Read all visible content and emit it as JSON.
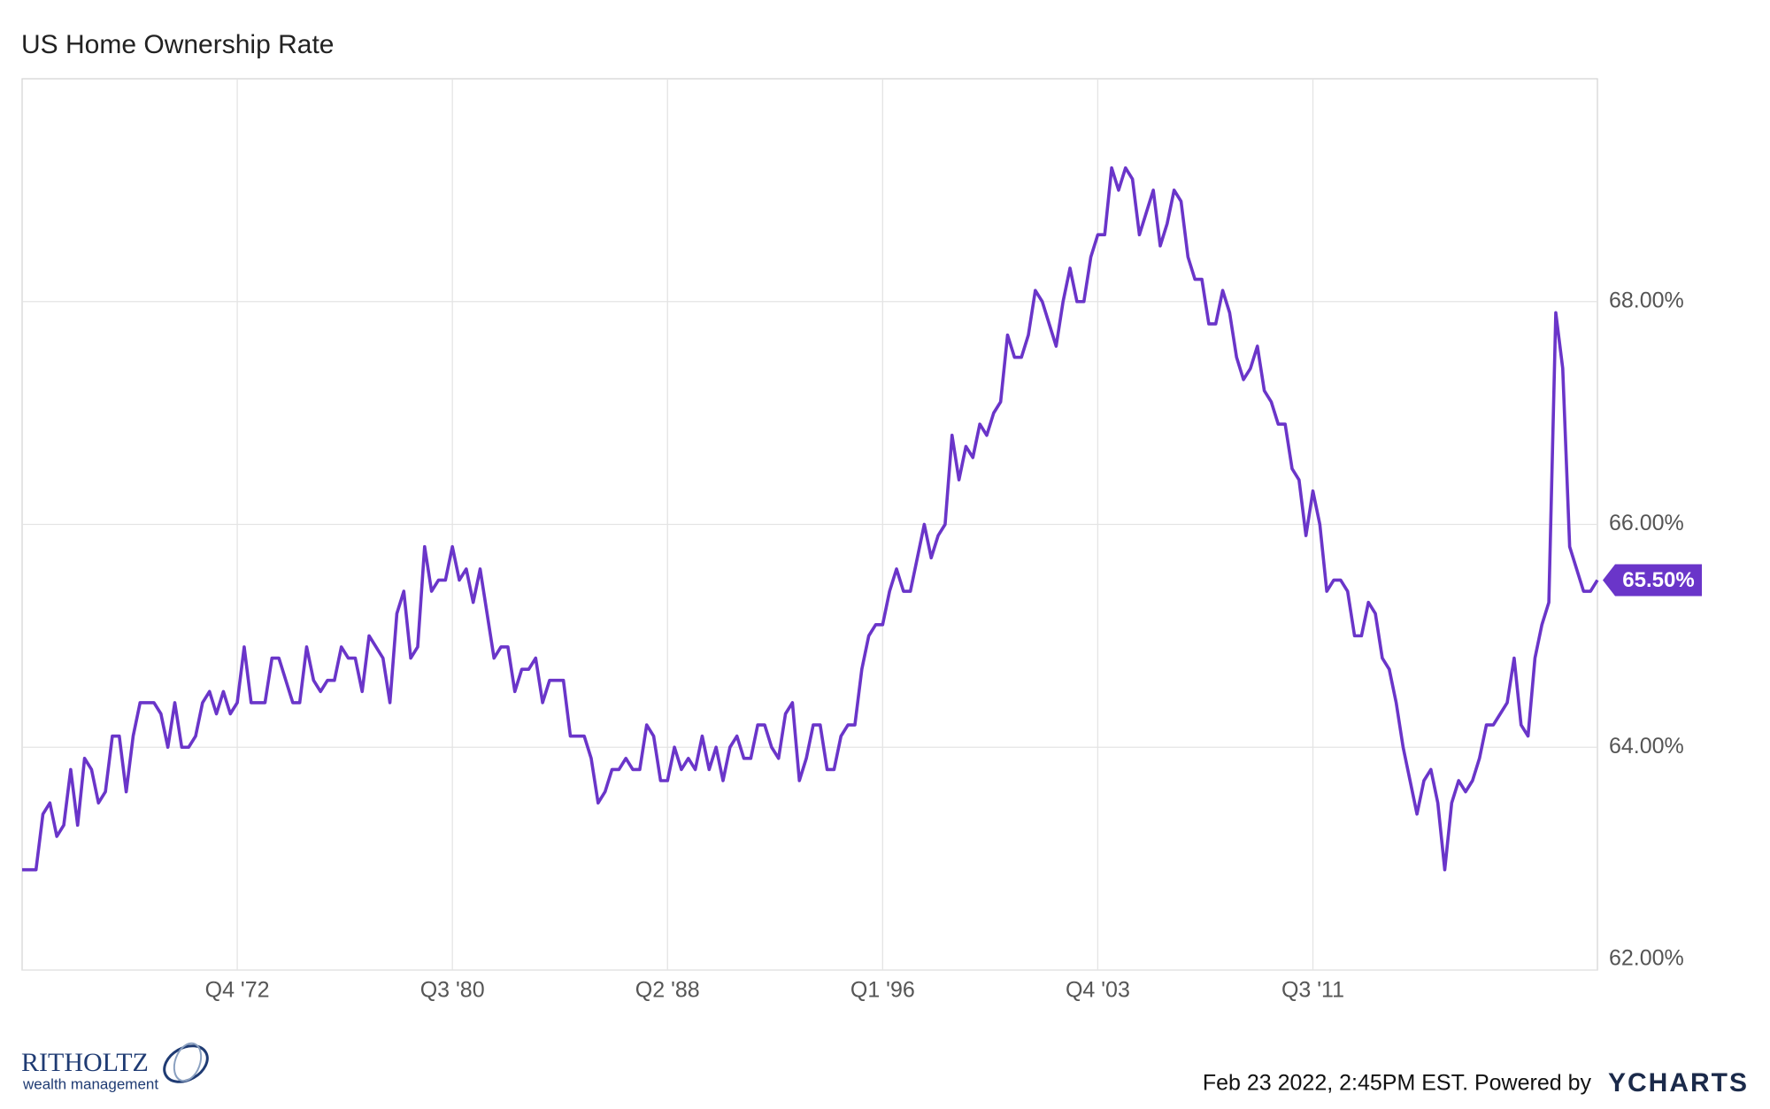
{
  "chart_data": {
    "type": "line",
    "title": "US Home Ownership Rate",
    "categories": [
      null,
      null,
      null,
      null,
      null,
      null,
      null,
      null,
      null,
      null,
      null,
      null,
      null,
      null,
      null,
      null,
      null,
      null,
      null,
      null,
      null,
      null,
      null,
      null,
      null,
      null,
      null,
      null,
      null,
      null,
      null,
      "Q4 '72",
      null,
      null,
      null,
      null,
      null,
      null,
      null,
      null,
      null,
      null,
      null,
      null,
      null,
      null,
      null,
      null,
      null,
      null,
      null,
      null,
      null,
      null,
      null,
      null,
      null,
      null,
      null,
      null,
      null,
      null,
      "Q3 '80",
      null,
      null,
      null,
      null,
      null,
      null,
      null,
      null,
      null,
      null,
      null,
      null,
      null,
      null,
      null,
      null,
      null,
      null,
      null,
      null,
      null,
      null,
      null,
      null,
      null,
      null,
      null,
      null,
      null,
      null,
      "Q2 '88",
      null,
      null,
      null,
      null,
      null,
      null,
      null,
      null,
      null,
      null,
      null,
      null,
      null,
      null,
      null,
      null,
      null,
      null,
      null,
      null,
      null,
      null,
      null,
      null,
      null,
      null,
      null,
      null,
      null,
      null,
      "Q1 '96",
      null,
      null,
      null,
      null,
      null,
      null,
      null,
      null,
      null,
      null,
      null,
      null,
      null,
      null,
      null,
      null,
      null,
      null,
      null,
      null,
      null,
      null,
      null,
      null,
      null,
      null,
      null,
      null,
      null,
      null,
      "Q4 '03",
      null,
      null,
      null,
      null,
      null,
      null,
      null,
      null,
      null,
      null,
      null,
      null,
      null,
      null,
      null,
      null,
      null,
      null,
      null,
      null,
      null,
      null,
      null,
      null,
      null,
      null,
      null,
      null,
      null,
      null,
      "Q3 '11",
      null,
      null,
      null,
      null,
      null,
      null,
      null,
      null,
      null,
      null,
      null,
      null,
      null,
      null,
      null,
      null,
      null,
      null,
      null,
      null,
      null,
      null,
      null,
      null,
      null,
      null,
      null,
      null,
      null,
      null,
      null,
      null,
      null,
      null,
      null,
      null,
      null,
      null,
      null,
      null,
      null
    ],
    "series": [
      {
        "name": "US Home Ownership Rate",
        "color": "#6a35c9",
        "values": [
          62.9,
          62.9,
          62.9,
          63.4,
          63.5,
          63.2,
          63.3,
          63.8,
          63.3,
          63.9,
          63.8,
          63.5,
          63.6,
          64.1,
          64.1,
          63.6,
          64.1,
          64.4,
          64.4,
          64.4,
          64.3,
          64.0,
          64.4,
          64.0,
          64.0,
          64.1,
          64.4,
          64.5,
          64.3,
          64.5,
          64.3,
          64.4,
          64.9,
          64.4,
          64.4,
          64.4,
          64.8,
          64.8,
          64.6,
          64.4,
          64.4,
          64.9,
          64.6,
          64.5,
          64.6,
          64.6,
          64.9,
          64.8,
          64.8,
          64.5,
          65.0,
          64.9,
          64.8,
          64.4,
          65.2,
          65.4,
          64.8,
          64.9,
          65.8,
          65.4,
          65.5,
          65.5,
          65.8,
          65.5,
          65.6,
          65.3,
          65.6,
          65.2,
          64.8,
          64.9,
          64.9,
          64.5,
          64.7,
          64.7,
          64.8,
          64.4,
          64.6,
          64.6,
          64.6,
          64.1,
          64.1,
          64.1,
          63.9,
          63.5,
          63.6,
          63.8,
          63.8,
          63.9,
          63.8,
          63.8,
          64.2,
          64.1,
          63.7,
          63.7,
          64.0,
          63.8,
          63.9,
          63.8,
          64.1,
          63.8,
          64.0,
          63.7,
          64.0,
          64.1,
          63.9,
          63.9,
          64.2,
          64.2,
          64.0,
          63.9,
          64.3,
          64.4,
          63.7,
          63.9,
          64.2,
          64.2,
          63.8,
          63.8,
          64.1,
          64.2,
          64.2,
          64.7,
          65.0,
          65.1,
          65.1,
          65.4,
          65.6,
          65.4,
          65.4,
          65.7,
          66.0,
          65.7,
          65.9,
          66.0,
          66.8,
          66.4,
          66.7,
          66.6,
          66.9,
          66.8,
          67.0,
          67.1,
          67.7,
          67.5,
          67.5,
          67.7,
          68.1,
          68.0,
          67.8,
          67.6,
          68.0,
          68.3,
          68.0,
          68.0,
          68.4,
          68.6,
          68.6,
          69.2,
          69.0,
          69.2,
          69.1,
          68.6,
          68.8,
          69.0,
          68.5,
          68.7,
          69.0,
          68.9,
          68.4,
          68.2,
          68.2,
          67.8,
          67.8,
          68.1,
          67.9,
          67.5,
          67.3,
          67.4,
          67.6,
          67.2,
          67.1,
          66.9,
          66.9,
          66.5,
          66.4,
          65.9,
          66.3,
          66.0,
          65.4,
          65.5,
          65.5,
          65.4,
          65.0,
          65.0,
          65.3,
          65.2,
          64.8,
          64.7,
          64.4,
          64.0,
          63.7,
          63.4,
          63.7,
          63.8,
          63.5,
          62.9,
          63.5,
          63.7,
          63.6,
          63.7,
          63.9,
          64.2,
          64.2,
          64.3,
          64.4,
          64.8,
          64.2,
          64.1,
          64.8,
          65.1,
          65.3,
          67.9,
          67.4,
          65.8,
          65.6,
          65.4,
          65.4,
          65.5
        ],
        "value_labels": [
          null,
          null,
          null,
          null,
          null,
          null,
          null,
          null,
          null,
          null,
          null,
          null,
          null,
          null,
          null,
          null,
          null,
          null,
          null,
          null,
          null,
          null,
          null,
          null,
          null,
          null,
          null,
          null,
          null,
          null,
          null,
          null,
          null,
          null,
          null,
          null,
          null,
          null,
          null,
          null,
          null,
          null,
          null,
          null,
          null,
          null,
          null,
          null,
          null,
          null,
          null,
          null,
          null,
          null,
          null,
          null,
          null,
          null,
          null,
          null,
          null,
          null,
          null,
          null,
          null,
          null,
          null,
          null,
          null,
          null,
          null,
          null,
          null,
          null,
          null,
          null,
          null,
          null,
          null,
          null,
          null,
          null,
          null,
          null,
          null,
          null,
          null,
          null,
          null,
          null,
          null,
          null,
          null,
          null,
          null,
          null,
          null,
          null,
          null,
          null,
          null,
          null,
          null,
          null,
          null,
          null,
          null,
          null,
          null,
          null,
          null,
          null,
          null,
          null,
          null,
          null,
          null,
          null,
          null,
          null,
          null,
          null,
          null,
          null,
          null,
          null,
          null,
          null,
          null,
          null,
          null,
          null,
          null,
          null,
          null,
          null,
          null,
          null,
          null,
          null,
          null,
          null,
          null,
          null,
          null,
          null,
          null,
          null,
          null,
          null,
          null,
          null,
          null,
          null,
          null,
          null,
          null,
          null,
          null,
          null,
          null,
          null,
          null,
          null,
          null,
          null,
          null,
          null,
          null,
          null,
          null,
          null,
          null,
          null,
          null,
          null,
          null,
          null,
          null,
          null,
          null,
          null,
          null,
          null,
          null,
          null,
          null,
          null,
          null,
          null,
          null,
          null,
          null,
          null,
          null,
          null,
          null,
          null,
          null,
          null,
          null,
          null,
          null,
          null,
          null,
          null,
          null,
          null,
          null,
          null,
          null,
          null,
          null,
          null,
          null,
          null,
          null,
          null,
          null,
          null,
          null,
          null,
          null,
          null,
          null,
          null,
          null,
          "65.50%"
        ]
      }
    ],
    "ylim": [
      62,
      70
    ],
    "yticks": [
      {
        "value": 62,
        "label": "62.00%"
      },
      {
        "value": 64,
        "label": "64.00%"
      },
      {
        "value": 66,
        "label": "66.00%"
      },
      {
        "value": 68,
        "label": "68.00%"
      }
    ],
    "grid": true
  },
  "footer": {
    "timestamp": "Feb 23 2022, 2:45PM EST. Powered by",
    "brand": "YCHARTS"
  },
  "logo": {
    "name": "RITHOLTZ",
    "tagline": "wealth management"
  }
}
